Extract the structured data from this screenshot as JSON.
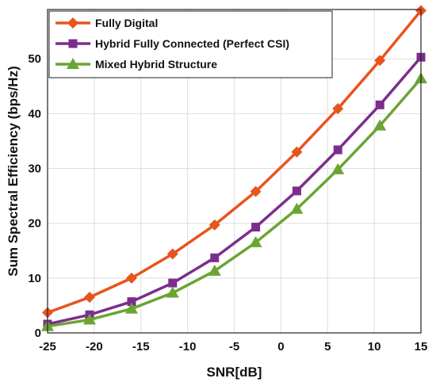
{
  "chart_data": {
    "type": "line",
    "xlabel": "SNR[dB]",
    "ylabel": "Sum Spectral Efficiency (bps/Hz)",
    "xlim": [
      -25,
      15
    ],
    "ylim": [
      0,
      59
    ],
    "xticks": [
      -25,
      -20,
      -15,
      -10,
      -5,
      0,
      5,
      10,
      15
    ],
    "yticks": [
      0,
      10,
      20,
      30,
      40,
      50
    ],
    "grid": true,
    "legend_position": "top-left",
    "x": [
      -25,
      -20.5,
      -16,
      -11.6,
      -7.1,
      -2.7,
      1.7,
      6.1,
      10.6,
      15
    ],
    "series": [
      {
        "name": "Fully Digital",
        "color": "#e8541e",
        "marker": "diamond",
        "values": [
          3.7,
          6.5,
          10.0,
          14.4,
          19.7,
          25.8,
          33.0,
          40.9,
          49.7,
          58.8
        ]
      },
      {
        "name": "Hybrid Fully Connected (Perfect CSI)",
        "color": "#7b2d8e",
        "marker": "square",
        "values": [
          1.6,
          3.3,
          5.7,
          9.1,
          13.7,
          19.3,
          25.9,
          33.4,
          41.6,
          50.3
        ]
      },
      {
        "name": "Mixed Hybrid Structure",
        "color": "#6aa532",
        "marker": "triangle",
        "values": [
          1.2,
          2.4,
          4.4,
          7.3,
          11.3,
          16.5,
          22.6,
          29.8,
          37.8,
          46.4
        ]
      }
    ]
  }
}
